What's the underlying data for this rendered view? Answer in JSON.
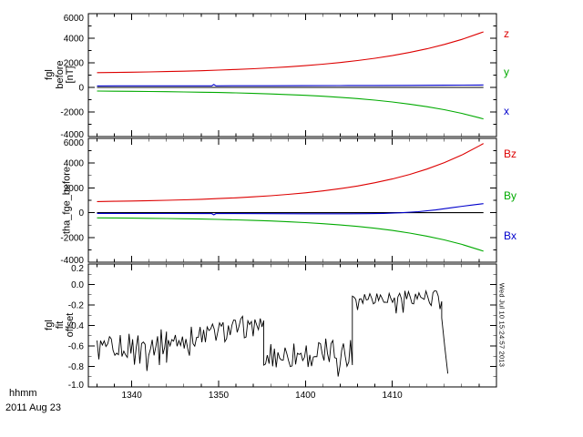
{
  "colors": {
    "background": "#ffffff",
    "frame": "#000000",
    "red": "#dd0000",
    "green": "#00aa00",
    "blue": "#0000cc",
    "black": "#000000"
  },
  "x_axis": {
    "label": "hhmm",
    "date_label": "2011 Aug 23",
    "domain_minutes": [
      815,
      862
    ],
    "minor_tick_step": 2,
    "major_ticks": [
      {
        "minute": 820,
        "label": "1340"
      },
      {
        "minute": 830,
        "label": "1350"
      },
      {
        "minute": 840,
        "label": "1400"
      },
      {
        "minute": 850,
        "label": "1410"
      }
    ]
  },
  "right_timestamp": "Wed Jul 10 15:24:57 2013",
  "chart_data": [
    {
      "type": "line",
      "ylabel_lines": [
        "fgl",
        "before",
        "[nT]"
      ],
      "ylabel": "fgl before [nT]",
      "ylim": [
        -4000,
        6000
      ],
      "y_minor_step": 1000,
      "yticks": [
        {
          "value": 6000,
          "label": "6000"
        },
        {
          "value": 4000,
          "label": "4000"
        },
        {
          "value": 2000,
          "label": "2000"
        },
        {
          "value": 0,
          "label": "0"
        },
        {
          "value": -2000,
          "label": "-2000"
        },
        {
          "value": -4000,
          "label": "-4000"
        }
      ],
      "right_labels": [
        {
          "text": "z",
          "color": "#dd0000"
        },
        {
          "text": "y",
          "color": "#00aa00"
        },
        {
          "text": "x",
          "color": "#0000cc"
        }
      ],
      "series": [
        {
          "name": "zero",
          "color": "#000000",
          "points": [
            [
              816,
              0
            ],
            [
              860.5,
              0
            ]
          ]
        },
        {
          "name": "z",
          "color": "#dd0000",
          "points": [
            [
              816,
              1200
            ],
            [
              818,
              1217
            ],
            [
              820,
              1237
            ],
            [
              822,
              1261
            ],
            [
              824,
              1289
            ],
            [
              826,
              1321
            ],
            [
              828,
              1359
            ],
            [
              830,
              1404
            ],
            [
              832,
              1456
            ],
            [
              834,
              1518
            ],
            [
              836,
              1589
            ],
            [
              838,
              1674
            ],
            [
              840,
              1772
            ],
            [
              842,
              1888
            ],
            [
              844,
              2023
            ],
            [
              846,
              2182
            ],
            [
              848,
              2368
            ],
            [
              850,
              2587
            ],
            [
              852,
              2843
            ],
            [
              854,
              3143
            ],
            [
              856,
              3494
            ],
            [
              858,
              3906
            ],
            [
              860,
              4389
            ],
            [
              860.5,
              4521
            ]
          ]
        },
        {
          "name": "y",
          "color": "#00aa00",
          "points": [
            [
              816,
              -300
            ],
            [
              818,
              -309
            ],
            [
              820,
              -321
            ],
            [
              822,
              -334
            ],
            [
              824,
              -350
            ],
            [
              826,
              -368
            ],
            [
              828,
              -391
            ],
            [
              830,
              -417
            ],
            [
              832,
              -448
            ],
            [
              834,
              -486
            ],
            [
              836,
              -530
            ],
            [
              838,
              -583
            ],
            [
              840,
              -645
            ],
            [
              842,
              -720
            ],
            [
              844,
              -808
            ],
            [
              846,
              -913
            ],
            [
              848,
              -1037
            ],
            [
              850,
              -1185
            ],
            [
              852,
              -1361
            ],
            [
              854,
              -1570
            ],
            [
              856,
              -1818
            ],
            [
              858,
              -2113
            ],
            [
              860,
              -2463
            ],
            [
              860.5,
              -2560
            ]
          ]
        },
        {
          "name": "x",
          "color": "#0000cc",
          "points": [
            [
              816,
              120
            ],
            [
              820,
              123
            ],
            [
              824,
              126
            ],
            [
              828,
              128
            ],
            [
              829.2,
              128
            ],
            [
              829.45,
              235
            ],
            [
              829.7,
              128
            ],
            [
              832,
              132
            ],
            [
              836,
              136
            ],
            [
              840,
              141
            ],
            [
              844,
              147
            ],
            [
              848,
              155
            ],
            [
              852,
              165
            ],
            [
              856,
              178
            ],
            [
              860,
              196
            ],
            [
              860.5,
              199
            ]
          ]
        }
      ]
    },
    {
      "type": "line",
      "ylabel_lines": [
        "tha_fge_before"
      ],
      "ylabel": "tha_fge_before",
      "ylim": [
        -4000,
        6000
      ],
      "y_minor_step": 1000,
      "yticks": [
        {
          "value": 6000,
          "label": "6000"
        },
        {
          "value": 4000,
          "label": "4000"
        },
        {
          "value": 2000,
          "label": "2000"
        },
        {
          "value": 0,
          "label": "0"
        },
        {
          "value": -2000,
          "label": "-2000"
        },
        {
          "value": -4000,
          "label": "-4000"
        }
      ],
      "right_labels": [
        {
          "text": "Bz",
          "color": "#dd0000"
        },
        {
          "text": "By",
          "color": "#00aa00"
        },
        {
          "text": "Bx",
          "color": "#0000cc"
        }
      ],
      "series": [
        {
          "name": "zero",
          "color": "#000000",
          "points": [
            [
              816,
              0
            ],
            [
              860.5,
              0
            ]
          ]
        },
        {
          "name": "Bz",
          "color": "#dd0000",
          "points": [
            [
              816,
              900
            ],
            [
              818,
              919
            ],
            [
              820,
              942
            ],
            [
              822,
              969
            ],
            [
              824,
              1001
            ],
            [
              826,
              1039
            ],
            [
              828,
              1084
            ],
            [
              830,
              1138
            ],
            [
              832,
              1202
            ],
            [
              834,
              1278
            ],
            [
              836,
              1369
            ],
            [
              838,
              1477
            ],
            [
              840,
              1606
            ],
            [
              842,
              1759
            ],
            [
              844,
              1941
            ],
            [
              846,
              2158
            ],
            [
              848,
              2416
            ],
            [
              850,
              2723
            ],
            [
              852,
              3089
            ],
            [
              854,
              3524
            ],
            [
              856,
              4041
            ],
            [
              858,
              4657
            ],
            [
              860,
              5390
            ],
            [
              860.5,
              5591
            ]
          ]
        },
        {
          "name": "By",
          "color": "#00aa00",
          "points": [
            [
              816,
              -420
            ],
            [
              818,
              -430
            ],
            [
              820,
              -442
            ],
            [
              822,
              -456
            ],
            [
              824,
              -473
            ],
            [
              826,
              -493
            ],
            [
              828,
              -517
            ],
            [
              830,
              -546
            ],
            [
              832,
              -581
            ],
            [
              834,
              -623
            ],
            [
              836,
              -672
            ],
            [
              838,
              -732
            ],
            [
              840,
              -803
            ],
            [
              842,
              -889
            ],
            [
              844,
              -991
            ],
            [
              846,
              -1113
            ],
            [
              848,
              -1260
            ],
            [
              850,
              -1435
            ],
            [
              852,
              -1645
            ],
            [
              854,
              -1896
            ],
            [
              856,
              -2197
            ],
            [
              858,
              -2558
            ],
            [
              860,
              -2989
            ],
            [
              860.5,
              -3107
            ]
          ]
        },
        {
          "name": "Bx",
          "color": "#0000cc",
          "points": [
            [
              816,
              -60
            ],
            [
              820,
              -64
            ],
            [
              824,
              -68
            ],
            [
              828,
              -71
            ],
            [
              829.2,
              -71
            ],
            [
              829.45,
              -175
            ],
            [
              829.7,
              -71
            ],
            [
              832,
              -75
            ],
            [
              836,
              -80
            ],
            [
              840,
              -86
            ],
            [
              844,
              -89
            ],
            [
              847,
              -82
            ],
            [
              849,
              -60
            ],
            [
              851,
              -10
            ],
            [
              853,
              80
            ],
            [
              855,
              220
            ],
            [
              857,
              420
            ],
            [
              859,
              600
            ],
            [
              860.5,
              730
            ]
          ]
        }
      ]
    },
    {
      "type": "line",
      "ylabel_lines": [
        "fgl",
        "fit",
        "offset"
      ],
      "ylabel": "fgl fit offset",
      "ylim": [
        -1.0,
        0.2
      ],
      "y_minor_step": 0.1,
      "yticks": [
        {
          "value": 0.2,
          "label": "0.2"
        },
        {
          "value": 0.0,
          "label": "0.0"
        },
        {
          "value": -0.2,
          "label": "-0.2"
        },
        {
          "value": -0.4,
          "label": "-0.4"
        },
        {
          "value": -0.6,
          "label": "-0.6"
        },
        {
          "value": -0.8,
          "label": "-0.8"
        },
        {
          "value": -1.0,
          "label": "-1.0"
        }
      ],
      "right_labels": [],
      "noisy_series": {
        "name": "offset",
        "color": "#000000",
        "samples_per_minute": 5,
        "clip": [
          -1.0,
          0.18
        ],
        "segments": [
          {
            "t_start": 816.0,
            "t_end": 824.0,
            "base_start": -0.63,
            "base_end": -0.56,
            "amplitude": 0.13,
            "spike_depth": 0.15
          },
          {
            "t_start": 824.0,
            "t_end": 835.2,
            "base_start": -0.56,
            "base_end": -0.38,
            "amplitude": 0.11,
            "spike_depth": 0.14
          },
          {
            "t_start": 835.2,
            "t_end": 845.4,
            "base_start": -0.7,
            "base_end": -0.65,
            "amplitude": 0.14,
            "spike_depth": 0.2
          },
          {
            "t_start": 845.4,
            "t_end": 855.7,
            "base_start": -0.12,
            "base_end": -0.12,
            "amplitude": 0.07,
            "spike_depth": 0.13
          },
          {
            "t_start": 855.7,
            "t_end": 856.4,
            "base_start": -0.35,
            "base_end": -0.88,
            "amplitude": 0.05,
            "spike_depth": 0.0
          }
        ]
      }
    }
  ]
}
